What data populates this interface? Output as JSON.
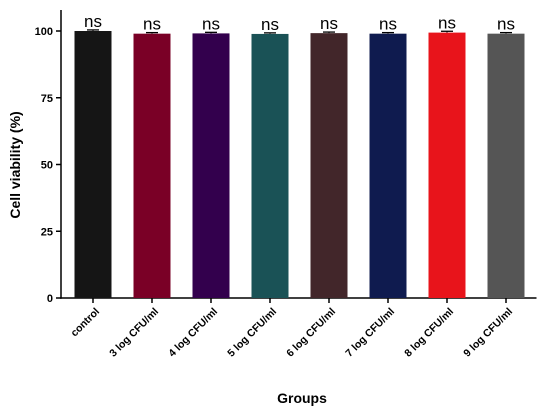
{
  "chart_data": {
    "type": "bar",
    "title": "",
    "xlabel": "Groups",
    "ylabel": "Cell viability (%)",
    "ylim": [
      0,
      108
    ],
    "yticks": [
      0,
      25,
      50,
      75,
      100
    ],
    "categories": [
      "control",
      "3 log CFU/ml",
      "4 log CFU/ml",
      "5 log CFU/ml",
      "6 log CFU/ml",
      "7 log CFU/ml",
      "8 log CFU/ml",
      "9 log CFU/ml"
    ],
    "values": [
      100,
      99,
      99.1,
      98.9,
      99.2,
      99,
      99.4,
      99
    ],
    "errors": [
      0.4,
      0.4,
      0.4,
      0.4,
      0.4,
      0.4,
      0.5,
      0.4
    ],
    "colors": [
      "#151515",
      "#7a0026",
      "#33004d",
      "#1a5256",
      "#42262a",
      "#0f1b4f",
      "#e8141b",
      "#555555"
    ],
    "annotations": [
      "ns",
      "ns",
      "ns",
      "ns",
      "ns",
      "ns",
      "ns",
      "ns"
    ],
    "grid": false,
    "legend": "none"
  }
}
